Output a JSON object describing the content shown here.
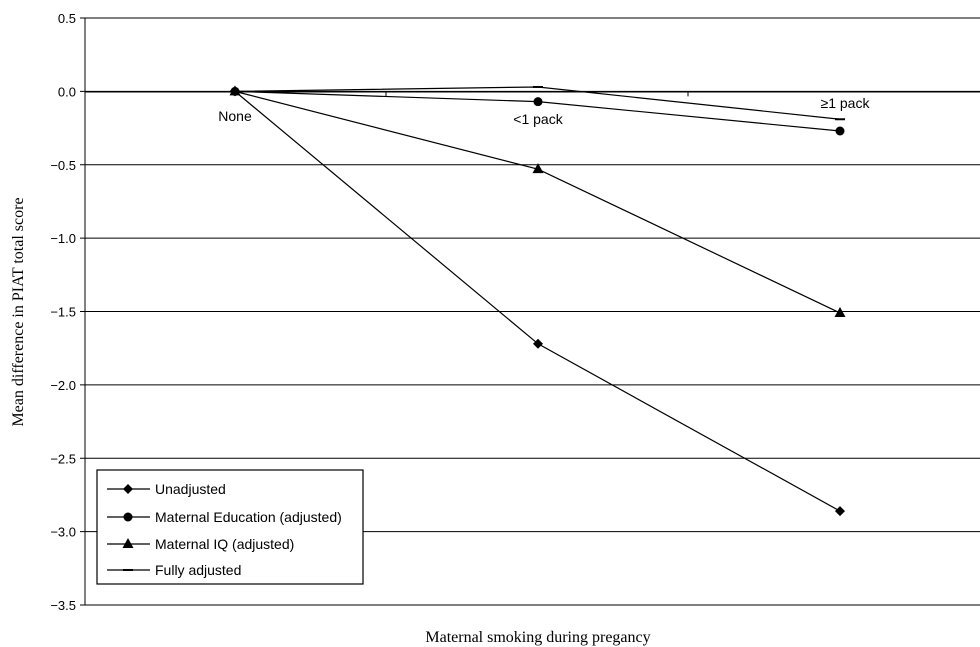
{
  "chart_data": {
    "type": "line",
    "categories": [
      "None",
      "<1 pack",
      "≥1 pack"
    ],
    "series": [
      {
        "name": "Unadjusted",
        "marker": "diamond",
        "values": [
          0.0,
          -1.72,
          -2.86
        ]
      },
      {
        "name": "Maternal Education (adjusted)",
        "marker": "circle",
        "values": [
          0.0,
          -0.07,
          -0.27
        ]
      },
      {
        "name": "Maternal IQ (adjusted)",
        "marker": "triangle",
        "values": [
          0.0,
          -0.53,
          -1.51
        ]
      },
      {
        "name": "Fully adjusted",
        "marker": "dash",
        "values": [
          0.0,
          0.03,
          -0.19
        ]
      }
    ],
    "xlabel": "Maternal smoking during pregancy",
    "ylabel": "Mean difference in PIAT total score",
    "ylim": [
      -3.5,
      0.5
    ],
    "yticks": [
      "0.5",
      "0.0",
      "−0.5",
      "−1.0",
      "−1.5",
      "−2.0",
      "−2.5",
      "−3.0",
      "−3.5"
    ],
    "ytick_values": [
      0.5,
      0.0,
      -0.5,
      -1.0,
      -1.5,
      -2.0,
      -2.5,
      -3.0,
      -3.5
    ],
    "grid": true,
    "legend_position": "bottom-left",
    "line_color": "#000000"
  }
}
